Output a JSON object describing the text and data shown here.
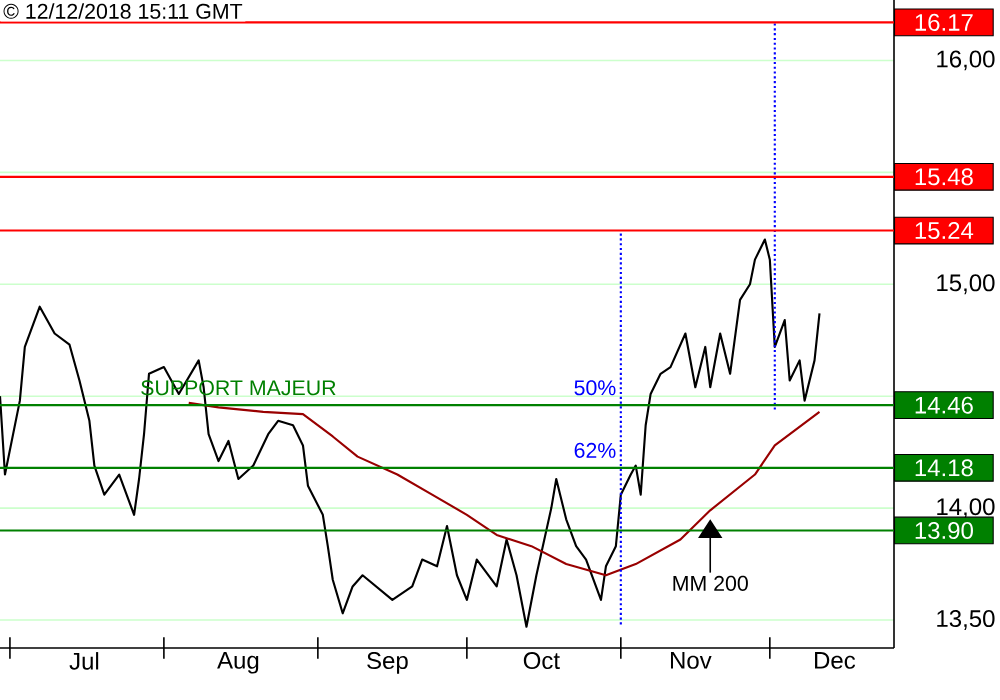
{
  "chart_data": {
    "type": "line",
    "x": [
      "2018-06-29",
      "2018-06-30",
      "2018-07-03",
      "2018-07-04",
      "2018-07-07",
      "2018-07-10",
      "2018-07-13",
      "2018-07-15",
      "2018-07-17",
      "2018-07-18",
      "2018-07-20",
      "2018-07-23",
      "2018-07-26",
      "2018-07-27",
      "2018-07-28",
      "2018-07-29",
      "2018-08-01",
      "2018-08-04",
      "2018-08-08",
      "2018-08-09",
      "2018-08-10",
      "2018-08-12",
      "2018-08-14",
      "2018-08-16",
      "2018-08-19",
      "2018-08-22",
      "2018-08-24",
      "2018-08-27",
      "2018-08-29",
      "2018-08-30",
      "2018-09-02",
      "2018-09-03",
      "2018-09-04",
      "2018-09-06",
      "2018-09-08",
      "2018-09-10",
      "2018-09-16",
      "2018-09-20",
      "2018-09-22",
      "2018-09-25",
      "2018-09-27",
      "2018-09-29",
      "2018-10-01",
      "2018-10-03",
      "2018-10-07",
      "2018-10-09",
      "2018-10-11",
      "2018-10-13",
      "2018-10-15",
      "2018-10-18",
      "2018-10-19",
      "2018-10-21",
      "2018-10-23",
      "2018-10-25",
      "2018-10-28",
      "2018-10-29",
      "2018-10-31",
      "2018-11-01",
      "2018-11-03",
      "2018-11-04",
      "2018-11-05",
      "2018-11-06",
      "2018-11-07",
      "2018-11-09",
      "2018-11-11",
      "2018-11-14",
      "2018-11-16",
      "2018-11-18",
      "2018-11-19",
      "2018-11-21",
      "2018-11-23",
      "2018-11-25",
      "2018-11-27",
      "2018-11-28",
      "2018-11-30",
      "2018-12-01",
      "2018-12-02",
      "2018-12-04",
      "2018-12-05",
      "2018-12-07",
      "2018-12-08",
      "2018-12-10",
      "2018-12-11"
    ],
    "series": [
      {
        "color": "#000000",
        "values": [
          14.5,
          14.15,
          14.48,
          14.72,
          14.9,
          14.78,
          14.73,
          14.57,
          14.39,
          14.19,
          14.06,
          14.15,
          13.97,
          14.13,
          14.33,
          14.6,
          14.63,
          14.51,
          14.66,
          14.54,
          14.33,
          14.21,
          14.3,
          14.13,
          14.19,
          14.33,
          14.39,
          14.37,
          14.28,
          14.1,
          13.97,
          13.83,
          13.68,
          13.53,
          13.65,
          13.7,
          13.59,
          13.65,
          13.77,
          13.74,
          13.92,
          13.7,
          13.59,
          13.77,
          13.65,
          13.86,
          13.7,
          13.47,
          13.7,
          14.0,
          14.13,
          13.95,
          13.83,
          13.77,
          13.59,
          13.74,
          13.83,
          14.06,
          14.15,
          14.19,
          14.06,
          14.37,
          14.51,
          14.6,
          14.63,
          14.78,
          14.54,
          14.72,
          14.54,
          14.78,
          14.6,
          14.93,
          15.0,
          15.11,
          15.2,
          15.11,
          14.72,
          14.84,
          14.57,
          14.66,
          14.48,
          14.66,
          14.87
        ]
      },
      {
        "color": "#990000",
        "x": [
          "2018-08-06",
          "2018-08-12",
          "2018-08-21",
          "2018-08-29",
          "2018-09-04",
          "2018-09-09",
          "2018-09-17",
          "2018-09-24",
          "2018-10-01",
          "2018-10-07",
          "2018-10-14",
          "2018-10-21",
          "2018-10-29",
          "2018-11-04",
          "2018-11-13",
          "2018-11-19",
          "2018-11-28",
          "2018-12-02",
          "2018-12-11"
        ],
        "values": [
          14.47,
          14.45,
          14.43,
          14.42,
          14.32,
          14.23,
          14.15,
          14.06,
          13.97,
          13.88,
          13.83,
          13.75,
          13.7,
          13.75,
          13.86,
          13.99,
          14.15,
          14.28,
          14.43
        ]
      },
      {
        "color": "#0000ff",
        "line_style": "dotted",
        "x": [
          "2018-11-01",
          "2018-11-01"
        ],
        "values": [
          13.48,
          15.24
        ]
      },
      {
        "color": "#0000ff",
        "line_style": "dotted",
        "x": [
          "2018-12-02",
          "2018-12-02"
        ],
        "values": [
          14.44,
          16.17
        ]
      }
    ],
    "xlim": [
      "2018-06-29",
      "2018-12-26"
    ],
    "xticks": [
      {
        "value": "2018-07-01",
        "label": null
      },
      {
        "value": "2018-07-16",
        "label": "Jul"
      },
      {
        "value": "2018-08-01",
        "label": null
      },
      {
        "value": "2018-08-16",
        "label": "Aug"
      },
      {
        "value": "2018-09-01",
        "label": null
      },
      {
        "value": "2018-09-15",
        "label": "Sep"
      },
      {
        "value": "2018-10-01",
        "label": null
      },
      {
        "value": "2018-10-16",
        "label": "Oct"
      },
      {
        "value": "2018-11-01",
        "label": null
      },
      {
        "value": "2018-11-15",
        "label": "Nov"
      },
      {
        "value": "2018-12-01",
        "label": null
      },
      {
        "value": "2018-12-14",
        "label": "Dec"
      }
    ],
    "ylim": [
      13.375,
      16.27
    ],
    "yticks": [
      {
        "value": 13.5,
        "label": "13,50"
      },
      {
        "value": 14,
        "label": "14,00"
      },
      {
        "value": 14.5,
        "label": null
      },
      {
        "value": 15,
        "label": "15,00"
      },
      {
        "value": 15.5,
        "label": null
      },
      {
        "value": 16,
        "label": "16,00"
      }
    ],
    "grid": "y",
    "marker": "none",
    "line_style": "solid",
    "ref_lines": [
      {
        "axis": "y",
        "value": 16.17,
        "label": "16.17",
        "color": "#ff0000"
      },
      {
        "axis": "y",
        "value": 15.48,
        "label": "15.48",
        "color": "#ff0000"
      },
      {
        "axis": "y",
        "value": 15.24,
        "label": "15.24",
        "color": "#ff0000"
      },
      {
        "axis": "y",
        "value": 14.46,
        "label": "14.46",
        "color": "#008000"
      },
      {
        "axis": "y",
        "value": 14.18,
        "label": "14.18",
        "color": "#008000"
      },
      {
        "axis": "y",
        "value": 13.9,
        "label": "13.90",
        "color": "#008000"
      }
    ],
    "annotations": [
      "© 12/12/2018 15:11 GMT",
      {
        "text": "SUPPORT MAJEUR",
        "x": "2018-08-16",
        "y": 14.46
      },
      {
        "text": "50%",
        "x": "2018-11-01",
        "y": 14.46
      },
      {
        "text": "62%",
        "x": "2018-11-01",
        "y": 14.18
      },
      {
        "text": "MM 200",
        "x": "2018-11-19",
        "y": 13.95
      }
    ]
  }
}
